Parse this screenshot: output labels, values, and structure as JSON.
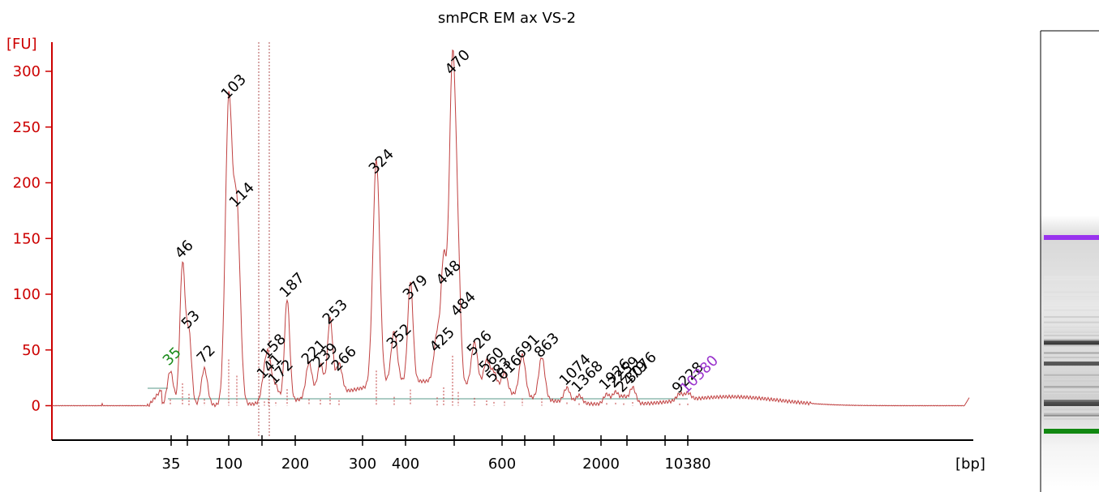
{
  "chart_data": {
    "type": "line",
    "title": "smPCR EM ax VS-2",
    "y_unit": "[FU]",
    "x_unit": "[bp]",
    "ylim": [
      -30,
      310
    ],
    "y_ticks": [
      0,
      50,
      100,
      150,
      200,
      250,
      300
    ],
    "x_tick_labels": [
      "35",
      "",
      "100",
      "",
      "200",
      "300",
      "400",
      "",
      "600",
      "",
      "",
      "2000",
      "",
      "",
      "10380"
    ],
    "markers": [
      {
        "label": "35",
        "color": "#1a8a1a"
      },
      {
        "label": "10380",
        "color": "#9933cc"
      }
    ],
    "peaks": [
      {
        "label": "35",
        "x": 210,
        "y": 31
      },
      {
        "label": "46",
        "x": 225,
        "y": 127
      },
      {
        "label": "53",
        "x": 233,
        "y": 64
      },
      {
        "label": "72",
        "x": 252,
        "y": 33
      },
      {
        "label": "103",
        "x": 282,
        "y": 270
      },
      {
        "label": "114",
        "x": 292,
        "y": 173
      },
      {
        "label": "141",
        "x": 326,
        "y": 19
      },
      {
        "label": "158",
        "x": 331,
        "y": 37
      },
      {
        "label": "172",
        "x": 340,
        "y": 14
      },
      {
        "label": "187",
        "x": 354,
        "y": 92
      },
      {
        "label": "221",
        "x": 381,
        "y": 32
      },
      {
        "label": "239",
        "x": 395,
        "y": 29
      },
      {
        "label": "253",
        "x": 407,
        "y": 68
      },
      {
        "label": "266",
        "x": 418,
        "y": 26
      },
      {
        "label": "324",
        "x": 464,
        "y": 203
      },
      {
        "label": "352",
        "x": 486,
        "y": 46
      },
      {
        "label": "379",
        "x": 506,
        "y": 90
      },
      {
        "label": "425",
        "x": 539,
        "y": 43
      },
      {
        "label": "448",
        "x": 547,
        "y": 103
      },
      {
        "label": "470",
        "x": 558,
        "y": 292
      },
      {
        "label": "484",
        "x": 565,
        "y": 75
      },
      {
        "label": "526",
        "x": 585,
        "y": 40
      },
      {
        "label": "560",
        "x": 600,
        "y": 25
      },
      {
        "label": "583",
        "x": 609,
        "y": 16
      },
      {
        "label": "616",
        "x": 622,
        "y": 18
      },
      {
        "label": "691",
        "x": 644,
        "y": 37
      },
      {
        "label": "863",
        "x": 668,
        "y": 38
      },
      {
        "label": "1074",
        "x": 699,
        "y": 13
      },
      {
        "label": "1368",
        "x": 714,
        "y": 7
      },
      {
        "label": "1926",
        "x": 748,
        "y": 9
      },
      {
        "label": "2259",
        "x": 759,
        "y": 11
      },
      {
        "label": "2479",
        "x": 769,
        "y": 7
      },
      {
        "label": "3076",
        "x": 780,
        "y": 15
      },
      {
        "label": "9228",
        "x": 838,
        "y": 6
      },
      {
        "label": "10380",
        "x": 848,
        "y": 6
      }
    ]
  }
}
